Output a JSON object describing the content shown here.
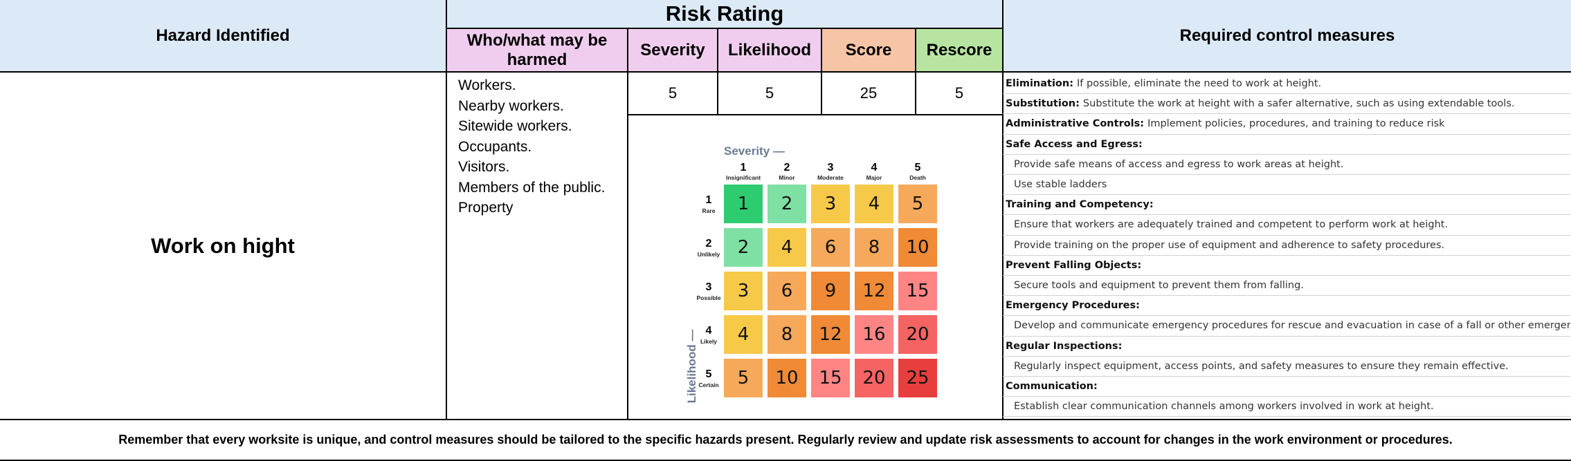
{
  "header": {
    "hazard_identified": "Hazard Identified",
    "risk_rating": "Risk Rating",
    "who_harmed": "Who/what may be harmed",
    "severity": "Severity",
    "likelihood": "Likelihood",
    "score": "Score",
    "rescore": "Rescore",
    "required_controls": "Required control measures"
  },
  "hazard": {
    "name": "Work on hight",
    "people": [
      "Workers.",
      "Nearby workers.",
      "Sitewide workers.",
      "Occupants.",
      "Visitors.",
      "Members of the public.",
      "Property"
    ],
    "severity": "5",
    "likelihood": "5",
    "score": "25",
    "rescore": "5"
  },
  "matrix": {
    "severity_title": "Severity",
    "likelihood_title": "Likelihood",
    "severity_levels": [
      {
        "num": "1",
        "label": "Insignificant"
      },
      {
        "num": "2",
        "label": "Minor"
      },
      {
        "num": "3",
        "label": "Moderate"
      },
      {
        "num": "4",
        "label": "Major"
      },
      {
        "num": "5",
        "label": "Death"
      }
    ],
    "likelihood_levels": [
      {
        "num": "1",
        "label": "Rare"
      },
      {
        "num": "2",
        "label": "Unlikely"
      },
      {
        "num": "3",
        "label": "Possible"
      },
      {
        "num": "4",
        "label": "Likely"
      },
      {
        "num": "5",
        "label": "Certain"
      }
    ],
    "cells": [
      [
        "1",
        "2",
        "3",
        "4",
        "5"
      ],
      [
        "2",
        "4",
        "6",
        "8",
        "10"
      ],
      [
        "3",
        "6",
        "9",
        "12",
        "15"
      ],
      [
        "4",
        "8",
        "12",
        "16",
        "20"
      ],
      [
        "5",
        "10",
        "15",
        "20",
        "25"
      ]
    ],
    "colors": {
      "1": "#2ecc71",
      "2": "#7fe0a4",
      "3": "#f7c948",
      "4": "#f7c948",
      "5": "#f6a95a",
      "6": "#f6a95a",
      "8": "#f6a95a",
      "9": "#f08a36",
      "10": "#f08a36",
      "12": "#f08a36",
      "15": "#ff8585",
      "16": "#ff8585",
      "20": "#f66363",
      "25": "#e93e3e"
    }
  },
  "controls": [
    {
      "title": "Elimination:",
      "text": "If possible, eliminate the need to work at height.",
      "type": "inline"
    },
    {
      "title": "Substitution:",
      "text": "Substitute the work at height with a safer alternative, such as using extendable tools.",
      "type": "inline"
    },
    {
      "title": "Administrative Controls:",
      "text": "Implement policies, procedures, and training to reduce risk",
      "type": "inline"
    },
    {
      "title": "Safe Access and Egress:",
      "type": "head"
    },
    {
      "text": "Provide safe means of access and egress to work areas at height.",
      "type": "sub"
    },
    {
      "text": "Use stable ladders",
      "type": "sub"
    },
    {
      "title": "Training and Competency:",
      "type": "head"
    },
    {
      "text": "Ensure that workers are adequately trained and competent to perform work at height.",
      "type": "sub"
    },
    {
      "text": "Provide training on the proper use of equipment and adherence to safety procedures.",
      "type": "sub"
    },
    {
      "title": "Prevent Falling Objects:",
      "type": "head"
    },
    {
      "text": "Secure tools and equipment to prevent them from falling.",
      "type": "sub"
    },
    {
      "title": "Emergency Procedures:",
      "type": "head"
    },
    {
      "text": "Develop and communicate emergency procedures for rescue and evacuation in case of a fall or other emergencies.",
      "type": "sub"
    },
    {
      "title": "Regular Inspections:",
      "type": "head"
    },
    {
      "text": "Regularly inspect equipment, access points, and safety measures to ensure they remain effective.",
      "type": "sub"
    },
    {
      "title": "Communication:",
      "type": "head"
    },
    {
      "text": "Establish clear communication channels among workers involved in work at height.",
      "type": "sub"
    }
  ],
  "footer": "Remember that every worksite is unique, and control measures should be tailored to the specific hazards present. Regularly review and update risk assessments to account for changes in the work environment or procedures.",
  "colors": {
    "header_blue": "#dce9f7",
    "who_harmed": "#f0cdee",
    "severity": "#f0cdee",
    "likelihood": "#f0cdee",
    "score": "#f6c5a6",
    "rescore": "#b7e4a0"
  }
}
